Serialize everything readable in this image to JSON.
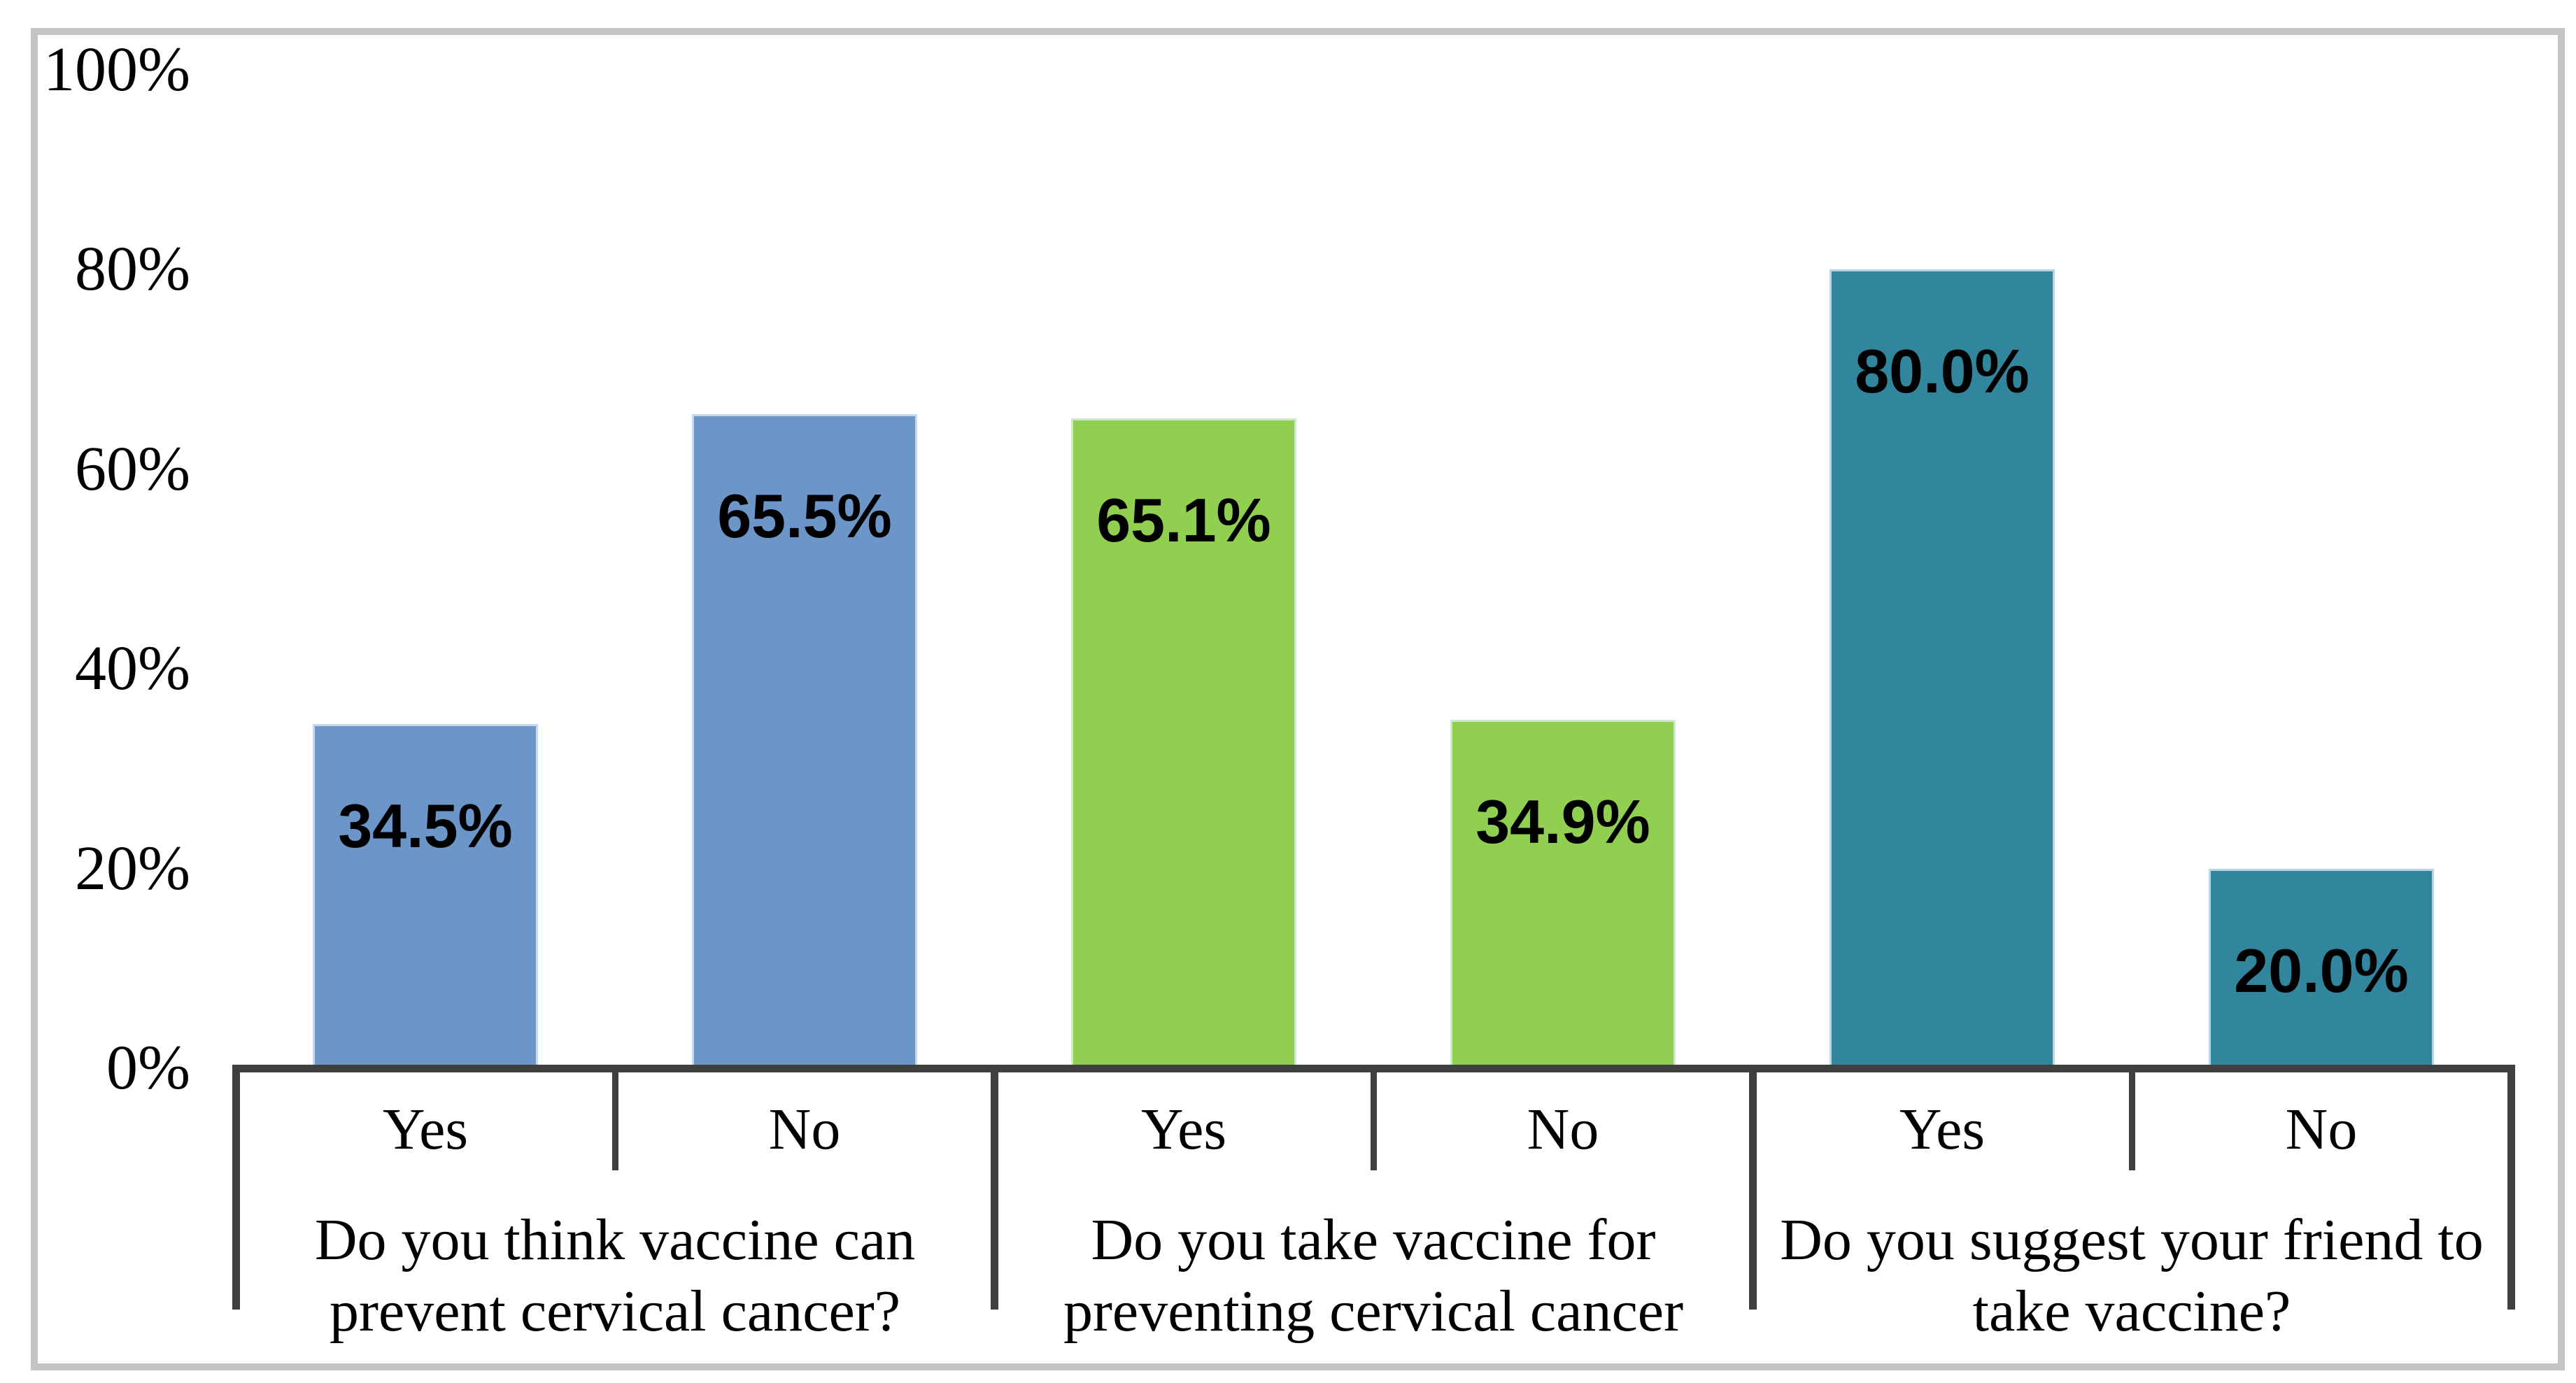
{
  "chart_data": {
    "type": "bar",
    "title": "",
    "xlabel": "",
    "ylabel": "",
    "ylim": [
      0,
      100
    ],
    "grid": false,
    "legend": false,
    "y_ticks": [
      "0%",
      "20%",
      "40%",
      "60%",
      "80%",
      "100%"
    ],
    "axis_color": "#3f3f3f",
    "frame_color": "#c4c4c4",
    "groups": [
      {
        "question": "Do you think vaccine can prevent cervical cancer?",
        "question_lines": [
          "Do you think vaccine can",
          "prevent cervical cancer?"
        ],
        "color": "#6c95c8",
        "bars": [
          {
            "answer": "Yes",
            "value": 34.5,
            "label": "34.5%"
          },
          {
            "answer": "No",
            "value": 65.5,
            "label": "65.5%"
          }
        ]
      },
      {
        "question": "Do you take vaccine for preventing cervical cancer",
        "question_lines": [
          "Do you take vaccine for",
          "preventing cervical cancer"
        ],
        "color": "#90cf50",
        "bars": [
          {
            "answer": "Yes",
            "value": 65.1,
            "label": "65.1%"
          },
          {
            "answer": "No",
            "value": 34.9,
            "label": "34.9%"
          }
        ]
      },
      {
        "question": "Do you suggest your friend to take vaccine?",
        "question_lines": [
          "Do you suggest your friend to",
          "take vaccine?"
        ],
        "color": "#31869e",
        "bars": [
          {
            "answer": "Yes",
            "value": 80.0,
            "label": "80.0%"
          },
          {
            "answer": "No",
            "value": 20.0,
            "label": "20.0%"
          }
        ]
      }
    ]
  }
}
